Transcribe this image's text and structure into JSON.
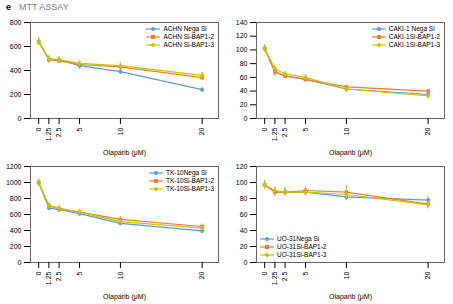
{
  "title": "MTT ASSAY",
  "annotations": [
    "e"
  ],
  "chart_data": [
    {
      "type": "line",
      "x_label": "Olaparib (μM)",
      "x": [
        0,
        1.25,
        2.5,
        5,
        10,
        20
      ],
      "xlim": [
        -1,
        22
      ],
      "xticks": [
        0,
        1.25,
        2.5,
        5,
        10,
        20
      ],
      "ylim": [
        0,
        800
      ],
      "yticks": [
        0,
        200,
        400,
        600,
        800
      ],
      "legend": "upper right",
      "series": [
        {
          "name": "ACHN Nega Si",
          "color": "#5b9bd5",
          "marker": "circle",
          "values": [
            640,
            490,
            490,
            440,
            390,
            240
          ],
          "errors": [
            30,
            30,
            20,
            30,
            20,
            20
          ]
        },
        {
          "name": "ACHN Si-BAP1-2",
          "color": "#ed7d31",
          "marker": "square",
          "values": [
            640,
            490,
            480,
            450,
            430,
            340
          ],
          "errors": [
            30,
            20,
            20,
            20,
            30,
            20
          ]
        },
        {
          "name": "ACHN Si-BAP1-3",
          "color": "#c6c500",
          "marker": "diamond",
          "values": [
            640,
            500,
            490,
            460,
            440,
            360
          ],
          "errors": [
            30,
            25,
            25,
            20,
            25,
            25
          ]
        }
      ]
    },
    {
      "type": "line",
      "x_label": "Olaparib (μM)",
      "x": [
        0,
        1.25,
        2.5,
        5,
        10,
        20
      ],
      "xlim": [
        -1,
        22
      ],
      "xticks": [
        0,
        1.25,
        2.5,
        5,
        10,
        20
      ],
      "ylim": [
        0,
        140
      ],
      "yticks": [
        0,
        20,
        40,
        60,
        80,
        100,
        120,
        140
      ],
      "legend": "upper right",
      "series": [
        {
          "name": "CAKI-1 Nega Si",
          "color": "#5b9bd5",
          "marker": "circle",
          "values": [
            102,
            68,
            62,
            57,
            43,
            35
          ],
          "errors": [
            5,
            6,
            4,
            4,
            3,
            3
          ]
        },
        {
          "name": "CAKI-1Si-BAP1-2",
          "color": "#ed7d31",
          "marker": "square",
          "values": [
            102,
            68,
            62,
            57,
            46,
            40
          ],
          "errors": [
            5,
            6,
            4,
            4,
            3,
            3
          ]
        },
        {
          "name": "CAKI-1Si-BAP1-3",
          "color": "#c6c500",
          "marker": "diamond",
          "values": [
            102,
            73,
            65,
            60,
            43,
            33
          ],
          "errors": [
            5,
            6,
            4,
            4,
            3,
            3
          ]
        }
      ]
    },
    {
      "type": "line",
      "x_label": "Olaparib (μM)",
      "x": [
        0,
        1.25,
        2.5,
        5,
        10,
        20
      ],
      "xlim": [
        -1,
        22
      ],
      "xticks": [
        0,
        1.25,
        2.5,
        5,
        10,
        20
      ],
      "ylim": [
        0,
        1200
      ],
      "yticks": [
        0,
        200,
        400,
        600,
        800,
        1000,
        1200
      ],
      "legend": "upper right",
      "series": [
        {
          "name": "TK-10Nega Si",
          "color": "#5b9bd5",
          "marker": "circle",
          "values": [
            1000,
            680,
            660,
            610,
            490,
            395
          ],
          "errors": [
            40,
            35,
            30,
            30,
            30,
            25
          ]
        },
        {
          "name": "TK-10Si-BAP1-2",
          "color": "#ed7d31",
          "marker": "square",
          "values": [
            1000,
            710,
            670,
            630,
            540,
            450
          ],
          "errors": [
            40,
            35,
            30,
            30,
            35,
            30
          ]
        },
        {
          "name": "TK-10Si-BAP1-3",
          "color": "#c6c500",
          "marker": "diamond",
          "values": [
            1000,
            710,
            680,
            630,
            510,
            430
          ],
          "errors": [
            40,
            35,
            30,
            30,
            30,
            25
          ]
        }
      ]
    },
    {
      "type": "line",
      "x_label": "Olaparib (μM)",
      "x": [
        0,
        1.25,
        2.5,
        5,
        10,
        20
      ],
      "xlim": [
        -1,
        22
      ],
      "xticks": [
        0,
        1.25,
        2.5,
        5,
        10,
        20
      ],
      "ylim": [
        0,
        120
      ],
      "yticks": [
        0,
        20,
        40,
        60,
        80,
        100,
        120
      ],
      "legend": "lower left",
      "series": [
        {
          "name": "UO-31Nega Si",
          "color": "#5b9bd5",
          "marker": "circle",
          "values": [
            97,
            88,
            88,
            88,
            82,
            78
          ],
          "errors": [
            5,
            5,
            5,
            5,
            5,
            5
          ]
        },
        {
          "name": "UO-31Si-BAP1-2",
          "color": "#ed7d31",
          "marker": "square",
          "values": [
            97,
            88,
            88,
            90,
            88,
            73
          ],
          "errors": [
            5,
            5,
            5,
            5,
            8,
            5
          ]
        },
        {
          "name": "UO-31Si-BAP1-3",
          "color": "#c6c500",
          "marker": "diamond",
          "values": [
            97,
            90,
            88,
            88,
            85,
            72
          ],
          "errors": [
            5,
            5,
            5,
            5,
            5,
            5
          ]
        }
      ]
    }
  ]
}
